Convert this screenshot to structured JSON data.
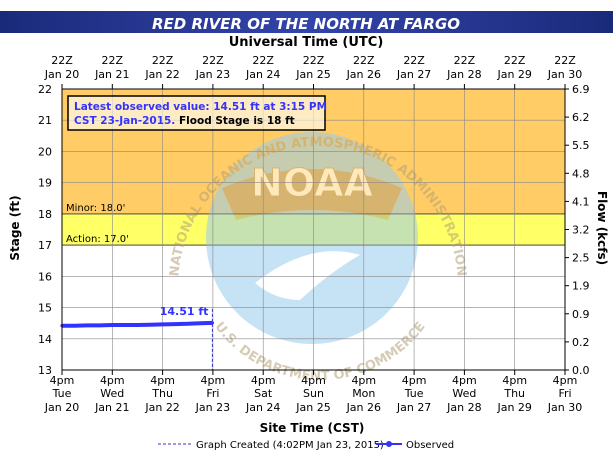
{
  "chart_data": {
    "type": "line",
    "title": "RED RIVER OF THE NORTH AT FARGO",
    "top_axis_label": "Universal Time (UTC)",
    "top_ticks": [
      [
        "22Z",
        "Jan 20"
      ],
      [
        "22Z",
        "Jan 21"
      ],
      [
        "22Z",
        "Jan 22"
      ],
      [
        "22Z",
        "Jan 23"
      ],
      [
        "22Z",
        "Jan 24"
      ],
      [
        "22Z",
        "Jan 25"
      ],
      [
        "22Z",
        "Jan 26"
      ],
      [
        "22Z",
        "Jan 27"
      ],
      [
        "22Z",
        "Jan 28"
      ],
      [
        "22Z",
        "Jan 29"
      ],
      [
        "22Z",
        "Jan 30"
      ]
    ],
    "bottom_axis_label": "Site Time (CST)",
    "bottom_ticks": [
      [
        "4pm",
        "Tue",
        "Jan 20"
      ],
      [
        "4pm",
        "Wed",
        "Jan 21"
      ],
      [
        "4pm",
        "Thu",
        "Jan 22"
      ],
      [
        "4pm",
        "Fri",
        "Jan 23"
      ],
      [
        "4pm",
        "Sat",
        "Jan 24"
      ],
      [
        "4pm",
        "Sun",
        "Jan 25"
      ],
      [
        "4pm",
        "Mon",
        "Jan 26"
      ],
      [
        "4pm",
        "Tue",
        "Jan 27"
      ],
      [
        "4pm",
        "Wed",
        "Jan 28"
      ],
      [
        "4pm",
        "Thu",
        "Jan 29"
      ],
      [
        "4pm",
        "Fri",
        "Jan 30"
      ]
    ],
    "ylabel_left": "Stage (ft)",
    "ylabel_right": "Flow (kcfs)",
    "ylim": [
      13,
      22
    ],
    "yticks_left": [
      13,
      14,
      15,
      16,
      17,
      18,
      19,
      20,
      21,
      22
    ],
    "yticks_right": [
      "0.0",
      "0.2",
      "0.9",
      "1.9",
      "2.5",
      "3.2",
      "4.1",
      "4.8",
      "5.5",
      "6.2",
      "6.9"
    ],
    "xlim_days": [
      0,
      10
    ],
    "flood_bands": [
      {
        "from": 17,
        "to": 18,
        "label": "Action: 17.0'",
        "color": "#ffff66"
      },
      {
        "from": 18,
        "to": 22,
        "label": "Minor: 18.0'",
        "color": "#ffcc66"
      }
    ],
    "annotation_lines": [
      "Latest observed value: 14.51 ft at 3:15 PM",
      "CST 23-Jan-2015."
    ],
    "annotation_suffix": "Flood Stage is 18 ft",
    "latest_label": "14.51 ft",
    "created_marker_day": 2.99,
    "series": [
      {
        "name": "Observed",
        "color": "#3333ff",
        "points": [
          [
            0.0,
            14.42
          ],
          [
            0.25,
            14.42
          ],
          [
            0.5,
            14.43
          ],
          [
            0.75,
            14.43
          ],
          [
            1.0,
            14.44
          ],
          [
            1.25,
            14.44
          ],
          [
            1.5,
            14.44
          ],
          [
            1.75,
            14.45
          ],
          [
            2.0,
            14.46
          ],
          [
            2.25,
            14.47
          ],
          [
            2.5,
            14.48
          ],
          [
            2.75,
            14.5
          ],
          [
            2.99,
            14.51
          ]
        ]
      }
    ],
    "legend": {
      "created_label": "Graph Created (4:02PM Jan 23, 2015)",
      "observed_label": "Observed"
    },
    "watermark_text": [
      "NATIONAL OCEANIC AND ATMOSPHERIC ADMINISTRATION",
      "U.S. DEPARTMENT OF COMMERCE",
      "NOAA"
    ]
  }
}
